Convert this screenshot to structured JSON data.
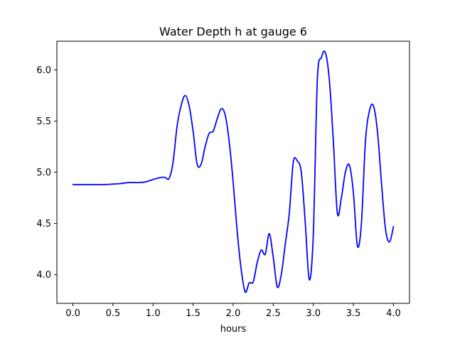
{
  "chart_data": {
    "type": "line",
    "title": "Water Depth h at gauge 6",
    "xlabel": "hours",
    "ylabel": "",
    "xlim": [
      -0.2,
      4.2
    ],
    "ylim": [
      3.72,
      6.28
    ],
    "xticks": [
      0.0,
      0.5,
      1.0,
      1.5,
      2.0,
      2.5,
      3.0,
      3.5,
      4.0
    ],
    "xtick_labels": [
      "0.0",
      "0.5",
      "1.0",
      "1.5",
      "2.0",
      "2.5",
      "3.0",
      "3.5",
      "4.0"
    ],
    "yticks": [
      4.0,
      4.5,
      5.0,
      5.5,
      6.0
    ],
    "ytick_labels": [
      "4.0",
      "4.5",
      "5.0",
      "5.5",
      "6.0"
    ],
    "grid": false,
    "legend": "none",
    "series": [
      {
        "color": "#0000ff",
        "x": [
          0.0,
          0.2,
          0.4,
          0.5,
          0.6,
          0.7,
          0.8,
          0.9,
          1.0,
          1.1,
          1.15,
          1.2,
          1.25,
          1.3,
          1.35,
          1.4,
          1.45,
          1.5,
          1.55,
          1.6,
          1.65,
          1.7,
          1.75,
          1.8,
          1.85,
          1.9,
          1.95,
          2.0,
          2.05,
          2.1,
          2.15,
          2.2,
          2.25,
          2.3,
          2.35,
          2.4,
          2.45,
          2.5,
          2.55,
          2.6,
          2.65,
          2.7,
          2.75,
          2.8,
          2.85,
          2.9,
          2.95,
          3.0,
          3.05,
          3.1,
          3.15,
          3.2,
          3.25,
          3.3,
          3.35,
          3.4,
          3.45,
          3.5,
          3.55,
          3.6,
          3.65,
          3.7,
          3.75,
          3.8,
          3.85,
          3.9,
          3.95,
          4.0
        ],
        "y": [
          4.88,
          4.88,
          4.88,
          4.885,
          4.89,
          4.9,
          4.9,
          4.905,
          4.93,
          4.95,
          4.95,
          4.94,
          5.1,
          5.45,
          5.65,
          5.75,
          5.65,
          5.4,
          5.08,
          5.08,
          5.25,
          5.38,
          5.4,
          5.52,
          5.62,
          5.56,
          5.3,
          4.9,
          4.42,
          4.05,
          3.83,
          3.92,
          3.93,
          4.12,
          4.24,
          4.2,
          4.4,
          4.17,
          3.88,
          4.0,
          4.3,
          4.6,
          5.1,
          5.11,
          5.0,
          4.5,
          3.95,
          4.4,
          5.9,
          6.12,
          6.17,
          5.9,
          5.3,
          4.6,
          4.75,
          5.0,
          5.07,
          4.8,
          4.28,
          4.5,
          5.3,
          5.6,
          5.65,
          5.4,
          4.9,
          4.45,
          4.32,
          4.47
        ]
      }
    ]
  }
}
